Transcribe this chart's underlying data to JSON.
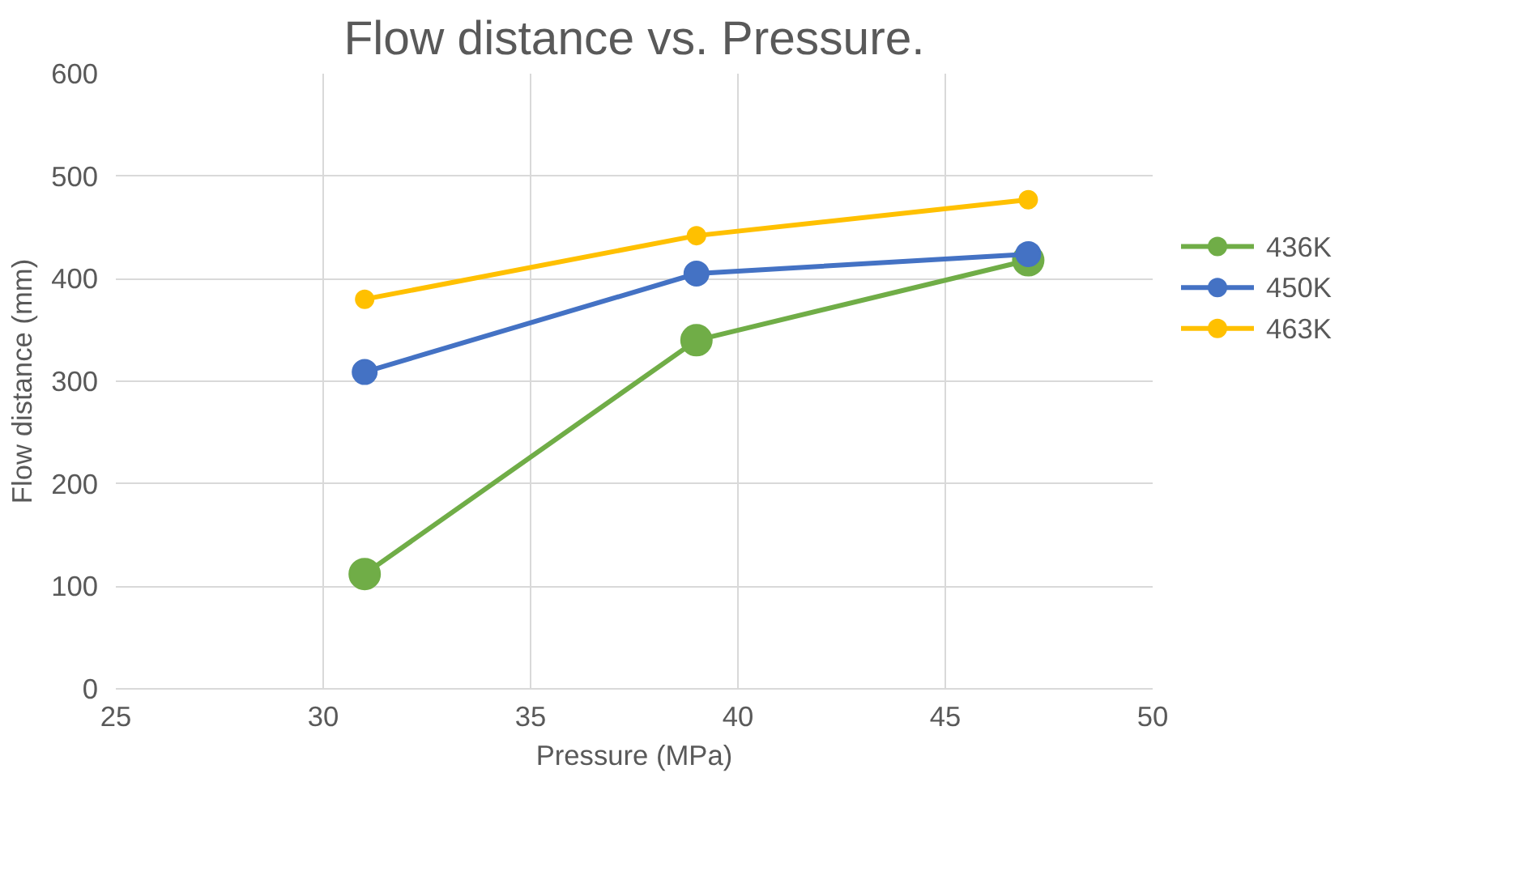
{
  "chart_data": {
    "type": "line",
    "title": "Flow distance vs. Pressure.",
    "xlabel": "Pressure (MPa)",
    "ylabel": "Flow distance (mm)",
    "x": [
      31,
      39,
      47
    ],
    "series": [
      {
        "name": "436K",
        "color": "#70ad47",
        "values": [
          112,
          340,
          418
        ]
      },
      {
        "name": "450K",
        "color": "#4472c4",
        "values": [
          309,
          405,
          424
        ]
      },
      {
        "name": "463K",
        "color": "#ffc000",
        "values": [
          380,
          442,
          477
        ]
      }
    ],
    "xlim": [
      25,
      50
    ],
    "xticks": [
      25,
      30,
      35,
      40,
      45,
      50
    ],
    "ylim": [
      0,
      600
    ],
    "yticks": [
      0,
      100,
      200,
      300,
      400,
      500,
      600
    ],
    "grid": true,
    "legend": "right",
    "marker": "circle",
    "line_style": "solid"
  }
}
